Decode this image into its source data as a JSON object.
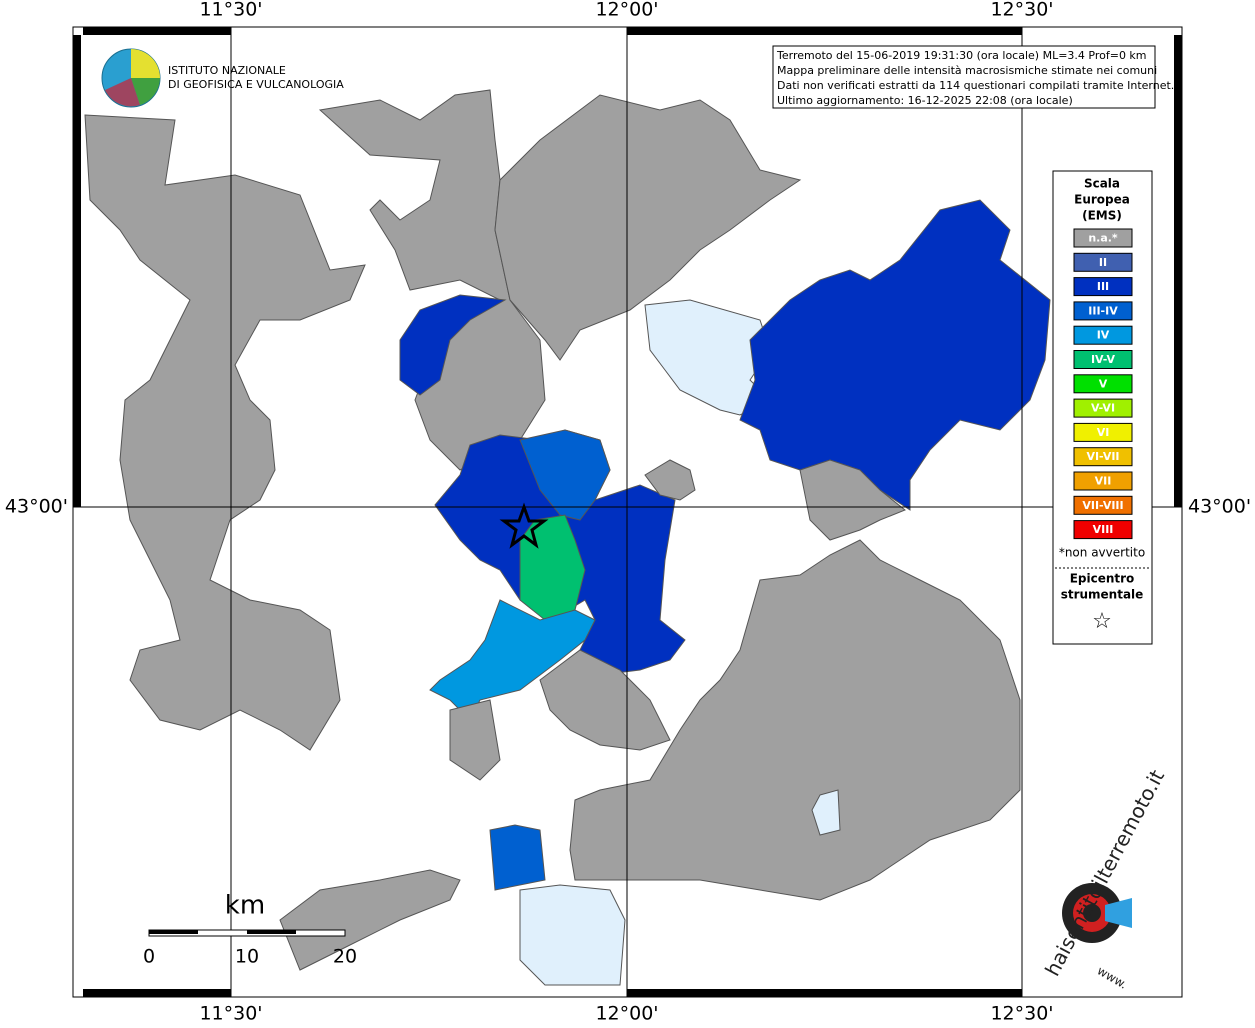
{
  "axes": {
    "top": [
      "11°30'",
      "12°00'",
      "12°30'"
    ],
    "bottom": [
      "11°30'",
      "12°00'",
      "12°30'"
    ],
    "left": "43°00'",
    "right": "43°00'"
  },
  "institute": {
    "line1": "ISTITUTO NAZIONALE",
    "line2": "DI GEOFISICA E VULCANOLOGIA"
  },
  "info": [
    "Terremoto del 15-06-2019 19:31:30 (ora locale) ML=3.4 Prof=0 km",
    "Mappa preliminare delle intensità macrosismiche stimate nei comuni",
    "Dati non verificati estratti da 114 questionari compilati tramite Internet.",
    "Ultimo aggiornamento: 16-12-2025 22:08 (ora locale)"
  ],
  "legend": {
    "title": [
      "Scala",
      "Europea",
      "(EMS)"
    ],
    "items": [
      {
        "label": "n.a.*",
        "color": "#a0a0a0"
      },
      {
        "label": "II",
        "color": "#4060b0"
      },
      {
        "label": "III",
        "color": "#0030c0"
      },
      {
        "label": "III-IV",
        "color": "#0060d0"
      },
      {
        "label": "IV",
        "color": "#0098e0"
      },
      {
        "label": "IV-V",
        "color": "#00c070"
      },
      {
        "label": "V",
        "color": "#00e000"
      },
      {
        "label": "V-VI",
        "color": "#a0f000"
      },
      {
        "label": "VI",
        "color": "#f0f000"
      },
      {
        "label": "VI-VII",
        "color": "#f0c000"
      },
      {
        "label": "VII",
        "color": "#f0a000"
      },
      {
        "label": "VII-VIII",
        "color": "#f07000"
      },
      {
        "label": "VIII",
        "color": "#f00000"
      }
    ],
    "note": "*non avvertito",
    "epicenter": [
      "Epicentro",
      "strumentale"
    ],
    "symbol": "☆"
  },
  "scale_bar": {
    "unit": "km",
    "ticks": [
      0,
      10,
      20
    ]
  },
  "site": {
    "name": "haisentitoilterremoto.it",
    "prefix": "www."
  }
}
